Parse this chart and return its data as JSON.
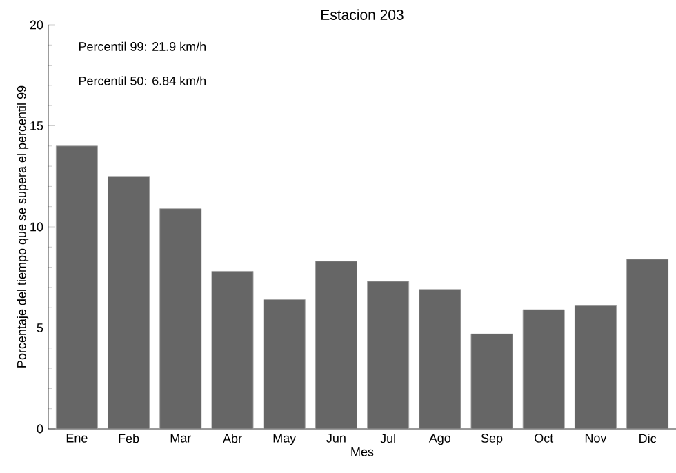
{
  "chart_data": {
    "type": "bar",
    "title": "Estacion 203",
    "xlabel": "Mes",
    "ylabel": "Porcentaje del tiempo que se supera el percentil 99",
    "categories": [
      "Ene",
      "Feb",
      "Mar",
      "Abr",
      "May",
      "Jun",
      "Jul",
      "Ago",
      "Sep",
      "Oct",
      "Nov",
      "Dic"
    ],
    "values": [
      14.0,
      12.5,
      10.9,
      7.8,
      6.4,
      8.3,
      7.3,
      6.9,
      4.7,
      5.9,
      6.1,
      8.4
    ],
    "color": "#666666",
    "ylim": [
      0,
      20
    ],
    "yticks": [
      0,
      5,
      10,
      15,
      20
    ],
    "grid": false,
    "annotations": [
      "Percentil 99: 21.9 km/h",
      "Percentil 50: 6.84 km/h"
    ]
  }
}
